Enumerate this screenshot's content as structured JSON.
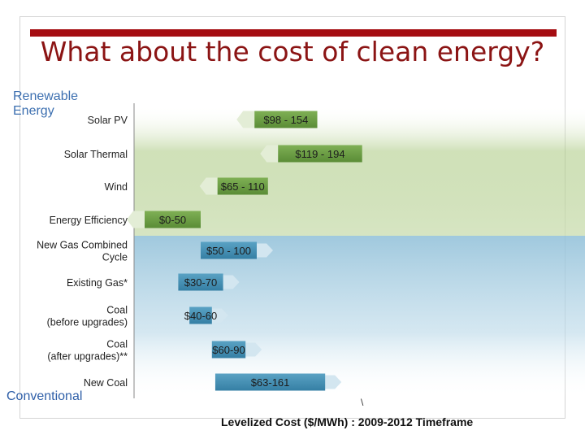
{
  "title": "What about the cost of clean energy?",
  "groups": {
    "top": "Renewable Energy",
    "bottom": "Conventional"
  },
  "colors": {
    "title": "#8b1414",
    "accent_bar": "#a50d12",
    "bar_green": "#6a9e43",
    "bar_blue": "#3f8bb0",
    "band_green": "#a9c87f",
    "band_blue": "#8fbfd8"
  },
  "xlabel": "Levelized Cost ($/MWh) : 2009-2012 Timeframe",
  "stray_mark": "\\",
  "chart_data": {
    "type": "bar",
    "orientation": "horizontal-range",
    "title": "What about the cost of clean energy?",
    "xlabel": "Levelized Cost ($/MWh) : 2009-2012 Timeframe",
    "xlim": [
      0,
      210
    ],
    "grid": false,
    "categories": [
      "Solar PV",
      "Solar Thermal",
      "Wind",
      "Energy Efficiency",
      "New Gas Combined Cycle",
      "Existing Gas*",
      "Coal (before upgrades)",
      "Coal (after upgrades)**",
      "New Coal"
    ],
    "category_lines": [
      [
        "Solar PV"
      ],
      [
        "Solar Thermal"
      ],
      [
        "Wind"
      ],
      [
        "Energy Efficiency"
      ],
      [
        "New Gas Combined",
        "Cycle"
      ],
      [
        "Existing Gas*"
      ],
      [
        "Coal",
        "(before upgrades)"
      ],
      [
        "Coal",
        "(after upgrades)**"
      ],
      [
        "New Coal"
      ]
    ],
    "groups": [
      "Renewable",
      "Renewable",
      "Renewable",
      "Renewable",
      "Conventional",
      "Conventional",
      "Conventional",
      "Conventional",
      "Conventional"
    ],
    "ranges": [
      [
        98,
        154
      ],
      [
        119,
        194
      ],
      [
        65,
        110
      ],
      [
        0,
        50
      ],
      [
        50,
        100
      ],
      [
        30,
        70
      ],
      [
        40,
        60
      ],
      [
        60,
        90
      ],
      [
        63,
        161
      ]
    ],
    "labels": [
      "$98 - 154",
      "$119 - 194",
      "$65 - 110",
      "$0-50",
      "$50 - 100",
      "$30-70",
      "$40-60",
      "$60-90",
      "$63-161"
    ]
  }
}
